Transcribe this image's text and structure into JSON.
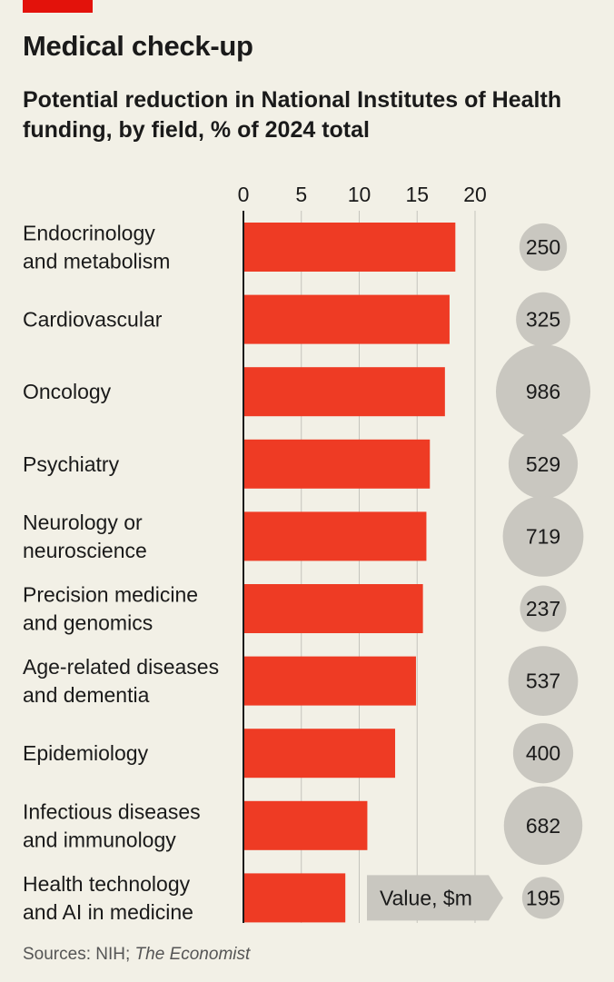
{
  "header": {
    "title": "Medical check-up",
    "subtitle": "Potential reduction in National Institutes of Health funding, by field, % of 2024 total"
  },
  "colors": {
    "bar": "#ee3b24",
    "bubble": "#c9c7c0",
    "accent": "#e3120b",
    "background": "#f2f0e6",
    "callout": "#c9c7c0"
  },
  "chart_data": {
    "type": "bar",
    "orientation": "horizontal",
    "title": "Medical check-up",
    "subtitle": "Potential reduction in National Institutes of Health funding, by field, % of 2024 total",
    "xlim": [
      0,
      20
    ],
    "xticks": [
      0,
      5,
      10,
      15,
      20
    ],
    "grid": true,
    "categories": [
      [
        "Endocrinology",
        "and metabolism"
      ],
      [
        "Cardiovascular"
      ],
      [
        "Oncology"
      ],
      [
        "Psychiatry"
      ],
      [
        "Neurology or",
        "neuroscience"
      ],
      [
        "Precision medicine",
        "and genomics"
      ],
      [
        "Age-related diseases",
        "and dementia"
      ],
      [
        "Epidemiology"
      ],
      [
        "Infectious diseases",
        "and immunology"
      ],
      [
        "Health technology",
        "and AI in medicine"
      ]
    ],
    "values": [
      18.3,
      17.8,
      17.4,
      16.1,
      15.8,
      15.5,
      14.9,
      13.1,
      10.7,
      8.8
    ],
    "bubble_values": [
      250,
      325,
      986,
      529,
      719,
      237,
      537,
      400,
      682,
      195
    ],
    "bubble_legend": "Value, $m"
  },
  "footer": {
    "source_prefix": "Sources: NIH; ",
    "source_italic": "The Economist"
  }
}
